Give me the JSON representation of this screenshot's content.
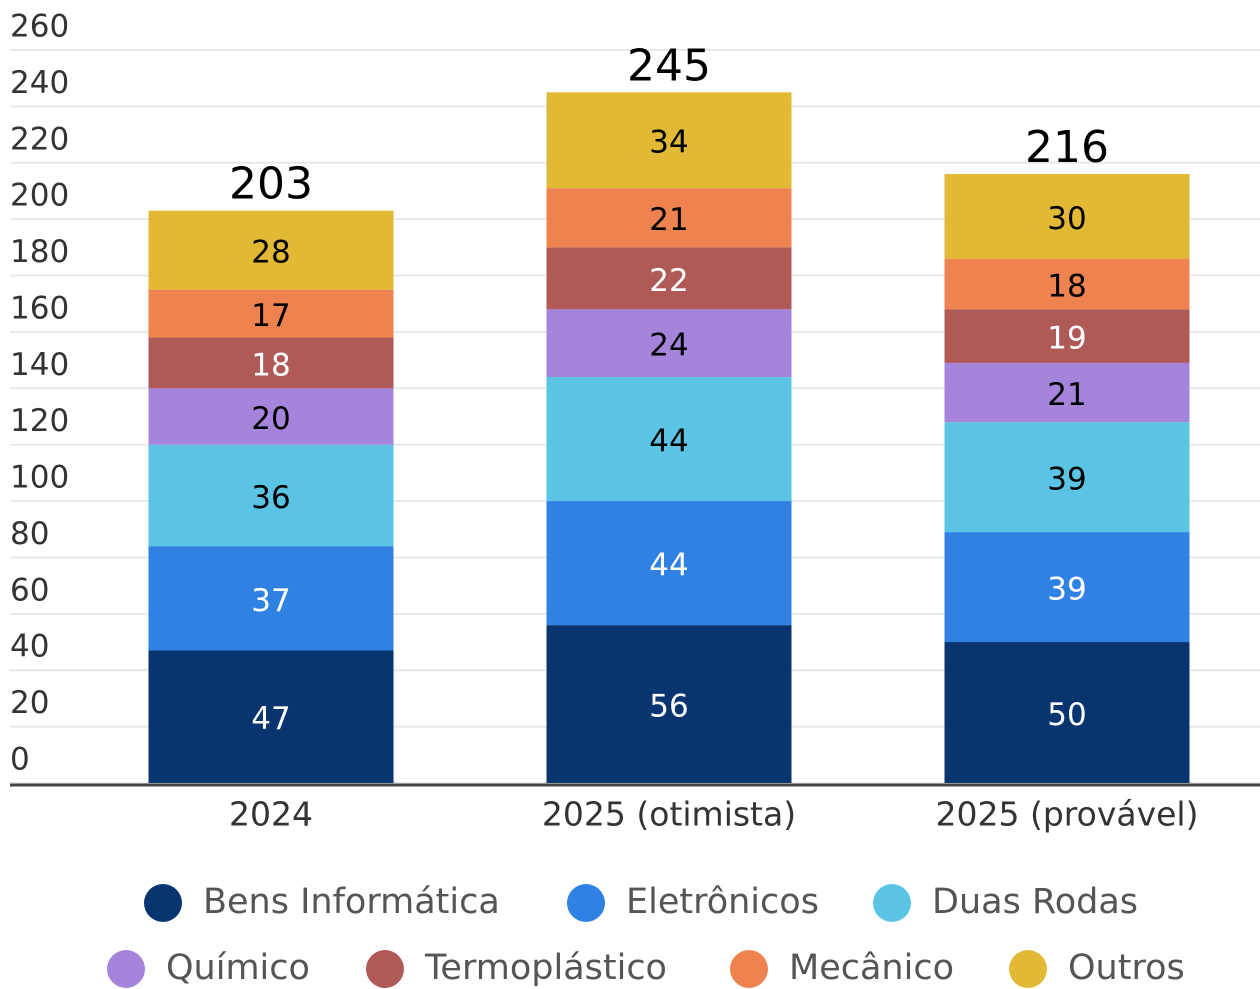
{
  "chart_data": {
    "type": "stacked-bar",
    "categories": [
      "2024",
      "2025 (otimista)",
      "2025 (provável)"
    ],
    "series": [
      {
        "name": "Bens Informática",
        "color": "#08346f",
        "label_color": "#ffffff",
        "values": [
          47,
          56,
          50
        ]
      },
      {
        "name": "Eletrônicos",
        "color": "#2f82e3",
        "label_color": "#ffffff",
        "values": [
          37,
          44,
          39
        ]
      },
      {
        "name": "Duas Rodas",
        "color": "#5bc4e5",
        "label_color": "#000000",
        "values": [
          36,
          44,
          39
        ]
      },
      {
        "name": "Químico",
        "color": "#a584dc",
        "label_color": "#000000",
        "values": [
          20,
          24,
          21
        ]
      },
      {
        "name": "Termoplástico",
        "color": "#b05a58",
        "label_color": "#ffffff",
        "values": [
          18,
          22,
          19
        ]
      },
      {
        "name": "Mecânico",
        "color": "#ee8350",
        "label_color": "#000000",
        "values": [
          17,
          21,
          18
        ]
      },
      {
        "name": "Outros",
        "color": "#e2b935",
        "label_color": "#000000",
        "values": [
          28,
          34,
          30
        ]
      }
    ],
    "totals": [
      203,
      245,
      216
    ],
    "ylim": [
      0,
      260
    ],
    "yticks": [
      0,
      20,
      40,
      60,
      80,
      100,
      120,
      140,
      160,
      180,
      200,
      220,
      240,
      260
    ],
    "grid": true
  }
}
